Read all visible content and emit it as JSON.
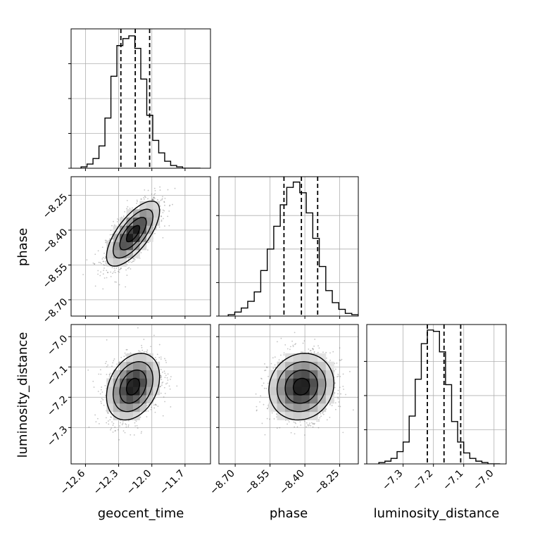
{
  "chart_data": {
    "type": "corner",
    "parameters": [
      "geocent_time",
      "phase",
      "luminosity_distance"
    ],
    "axes": {
      "geocent_time": {
        "label": "geocent_time",
        "range": [
          -12.73,
          -11.47
        ],
        "ticks": [
          -12.6,
          -12.3,
          -12.0,
          -11.7
        ],
        "tick_labels": [
          "−12.6",
          "−12.3",
          "−12.0",
          "−11.7"
        ],
        "quantiles": [
          -12.28,
          -12.15,
          -12.02
        ]
      },
      "phase": {
        "label": "phase",
        "range": [
          -8.77,
          -8.17
        ],
        "ticks": [
          -8.7,
          -8.55,
          -8.4,
          -8.25
        ],
        "tick_labels": [
          "−8.70",
          "−8.55",
          "−8.40",
          "−8.25"
        ],
        "quantiles": [
          -8.49,
          -8.415,
          -8.345
        ]
      },
      "luminosity_distance": {
        "label": "luminosity_distance",
        "range": [
          -7.42,
          -6.96
        ],
        "ticks": [
          -7.3,
          -7.2,
          -7.1,
          -7.0
        ],
        "tick_labels": [
          "−7.3",
          "−7.2",
          "−7.1",
          "−7.0"
        ],
        "quantiles": [
          -7.22,
          -7.165,
          -7.11
        ]
      }
    },
    "histograms": {
      "geocent_time": {
        "bin_range": [
          -12.64,
          -11.56
        ],
        "counts": [
          1,
          3,
          7,
          16,
          36,
          66,
          88,
          93,
          95,
          86,
          64,
          38,
          20,
          11,
          5,
          2,
          1,
          0,
          0,
          0
        ],
        "max": 100
      },
      "phase": {
        "bin_range": [
          -8.73,
          -8.17
        ],
        "counts": [
          1,
          3,
          6,
          11,
          18,
          34,
          50,
          67,
          83,
          96,
          100,
          92,
          77,
          58,
          37,
          19,
          10,
          5,
          2,
          1
        ],
        "max": 104
      },
      "luminosity_distance": {
        "bin_range": [
          -7.38,
          -6.98
        ],
        "counts": [
          1,
          2,
          4,
          9,
          16,
          35,
          62,
          88,
          98,
          97,
          82,
          58,
          31,
          16,
          8,
          4,
          2,
          1,
          0,
          0
        ],
        "max": 102
      }
    },
    "pairs": [
      {
        "x": "geocent_time",
        "y": "phase",
        "mean": [
          -12.17,
          -8.415
        ],
        "sd": [
          0.12,
          0.07
        ],
        "rho": 0.7
      },
      {
        "x": "geocent_time",
        "y": "luminosity_distance",
        "mean": [
          -12.17,
          -7.165
        ],
        "sd": [
          0.12,
          0.055
        ],
        "rho": 0.3
      },
      {
        "x": "phase",
        "y": "luminosity_distance",
        "mean": [
          -8.415,
          -7.165
        ],
        "sd": [
          0.07,
          0.055
        ],
        "rho": 0.1
      }
    ],
    "grid": true,
    "quantile_line_style": "dashed"
  },
  "colors": {
    "line": "#000000",
    "grid": "#b0b0b0",
    "points": "#555555",
    "background": "#ffffff"
  }
}
